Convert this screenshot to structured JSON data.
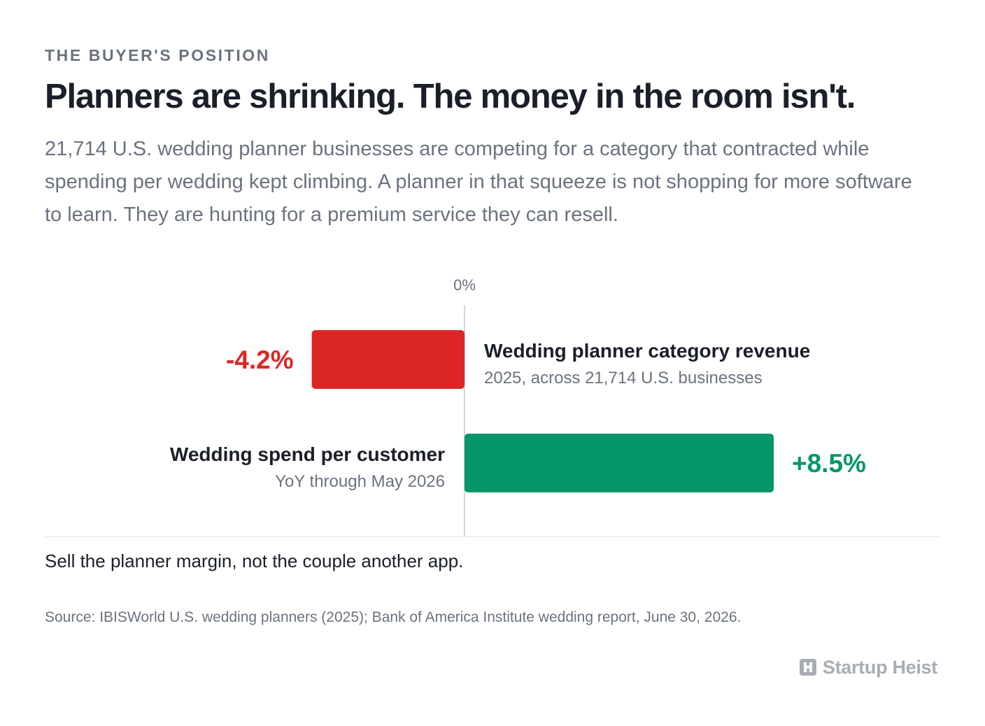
{
  "header": {
    "eyebrow": "THE BUYER'S POSITION",
    "headline": "Planners are shrinking. The money in the room isn't.",
    "dek": "21,714 U.S. wedding planner businesses are competing for a category that contracted while spending per wedding kept climbing. A planner in that squeeze is not shopping for more software to learn. They are hunting for a premium service they can resell."
  },
  "chart_data": {
    "type": "bar",
    "orientation": "horizontal",
    "zero_label": "0%",
    "xlim": [
      -5,
      10
    ],
    "colors": {
      "negative": "#dc2626",
      "positive": "#059669",
      "axis": "#d1d5db"
    },
    "bars": [
      {
        "label": "Wedding planner category revenue",
        "sublabel": "2025, across 21,714 U.S. businesses",
        "value": -4.2,
        "value_label": "-4.2%"
      },
      {
        "label": "Wedding spend per customer",
        "sublabel": "YoY through May 2026",
        "value": 8.5,
        "value_label": "+8.5%"
      }
    ]
  },
  "footer": {
    "takeaway": "Sell the planner margin, not the couple another app.",
    "source": "Source: IBISWorld U.S. wedding planners (2025); Bank of America Institute wedding report, June 30, 2026.",
    "brand": "Startup Heist",
    "brand_icon": "h-logo-icon"
  }
}
